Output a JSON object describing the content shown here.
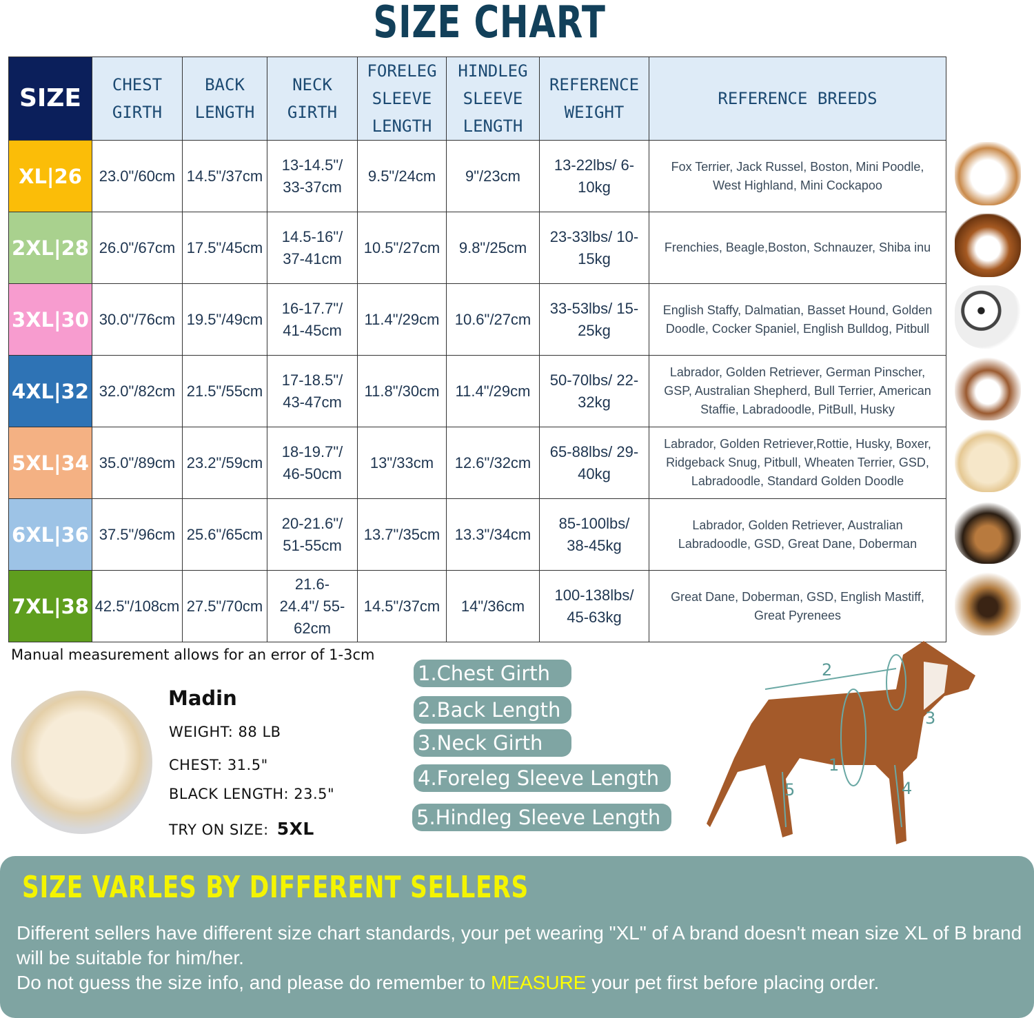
{
  "title": "SIZE CHART",
  "table": {
    "headers": [
      "SIZE",
      "CHEST GIRTH",
      "BACK LENGTH",
      "NECK GIRTH",
      "FORELEG SLEEVE LENGTH",
      "HINDLEG SLEEVE LENGTH",
      "REFERENCE WEIGHT",
      "REFERENCE BREEDS"
    ],
    "rows": [
      {
        "size": "XL|26",
        "color": "#fbbd08",
        "chest": "23.0\"/60cm",
        "back": "14.5\"/37cm",
        "neck": "13-14.5\"/ 33-37cm",
        "foreleg": "9.5\"/24cm",
        "hindleg": "9\"/23cm",
        "weight": "13-22lbs/ 6-10kg",
        "breeds": "Fox Terrier, Jack Russel, Boston, Mini Poodle, West Highland, Mini Cockapoo"
      },
      {
        "size": "2XL|28",
        "color": "#a9d18e",
        "chest": "26.0\"/67cm",
        "back": "17.5\"/45cm",
        "neck": "14.5-16\"/ 37-41cm",
        "foreleg": "10.5\"/27cm",
        "hindleg": "9.8\"/25cm",
        "weight": "23-33lbs/ 10-15kg",
        "breeds": "Frenchies, Beagle,Boston, Schnauzer, Shiba inu"
      },
      {
        "size": "3XL|30",
        "color": "#f79ccf",
        "chest": "30.0\"/76cm",
        "back": "19.5\"/49cm",
        "neck": "16-17.7\"/ 41-45cm",
        "foreleg": "11.4\"/29cm",
        "hindleg": "10.6\"/27cm",
        "weight": "33-53lbs/ 15-25kg",
        "breeds": "English Staffy, Dalmatian, Basset Hound, Golden Doodle, Cocker Spaniel, English Bulldog, Pitbull"
      },
      {
        "size": "4XL|32",
        "color": "#2e73b5",
        "chest": "32.0\"/82cm",
        "back": "21.5\"/55cm",
        "neck": "17-18.5\"/ 43-47cm",
        "foreleg": "11.8\"/30cm",
        "hindleg": "11.4\"/29cm",
        "weight": "50-70lbs/ 22-32kg",
        "breeds": "Labrador, Golden Retriever, German Pinscher, GSP, Australian Shepherd, Bull Terrier, American Staffie, Labradoodle, PitBull, Husky"
      },
      {
        "size": "5XL|34",
        "color": "#f4b183",
        "chest": "35.0\"/89cm",
        "back": "23.2\"/59cm",
        "neck": "18-19.7\"/ 46-50cm",
        "foreleg": "13\"/33cm",
        "hindleg": "12.6\"/32cm",
        "weight": "65-88lbs/ 29-40kg",
        "breeds": "Labrador, Golden Retriever,Rottie, Husky, Boxer, Ridgeback Snug, Pitbull, Wheaten Terrier, GSD, Labradoodle,  Standard Golden Doodle"
      },
      {
        "size": "6XL|36",
        "color": "#9dc3e6",
        "chest": "37.5\"/96cm",
        "back": "25.6\"/65cm",
        "neck": "20-21.6\"/ 51-55cm",
        "foreleg": "13.7\"/35cm",
        "hindleg": "13.3\"/34cm",
        "weight": "85-100lbs/ 38-45kg",
        "breeds": "Labrador, Golden Retriever, Australian Labradoodle, GSD, Great Dane, Doberman"
      },
      {
        "size": "7XL|38",
        "color": "#5f9e1e",
        "chest": "42.5\"/108cm",
        "back": "27.5\"/70cm",
        "neck": "21.6-24.4\"/ 55-62cm",
        "foreleg": "14.5\"/37cm",
        "hindleg": "14\"/36cm",
        "weight": "100-138lbs/ 45-63kg",
        "breeds": "Great Dane, Doberman, GSD, English Mastiff, Great Pyrenees"
      }
    ]
  },
  "note": "Manual measurement allows for an error of 1-3cm",
  "model": {
    "name": "Madin",
    "weight": "WEIGHT: 88 LB",
    "chest": "CHEST: 31.5\"",
    "length": "BLACK LENGTH: 23.5\"",
    "try_label": "TRY ON SIZE:",
    "try_size": "5XL"
  },
  "measures": [
    "1.Chest Girth",
    "2.Back Length",
    "3.Neck Girth",
    "4.Foreleg Sleeve Length",
    "5.Hindleg Sleeve Length"
  ],
  "diagram_numbers": [
    "1",
    "2",
    "3",
    "4",
    "5"
  ],
  "panel": {
    "title": "SIZE VARLES BY DIFFERENT SELLERS",
    "line1": "Different sellers have different size chart standards, your pet wearing \"XL\" of A brand doesn't mean size  XL of B brand will be suitable for him/her.",
    "line2_a": "Do not guess the size info, and please do remember to ",
    "line2_hl": "MEASURE",
    "line2_b": " your pet first before placing order."
  }
}
